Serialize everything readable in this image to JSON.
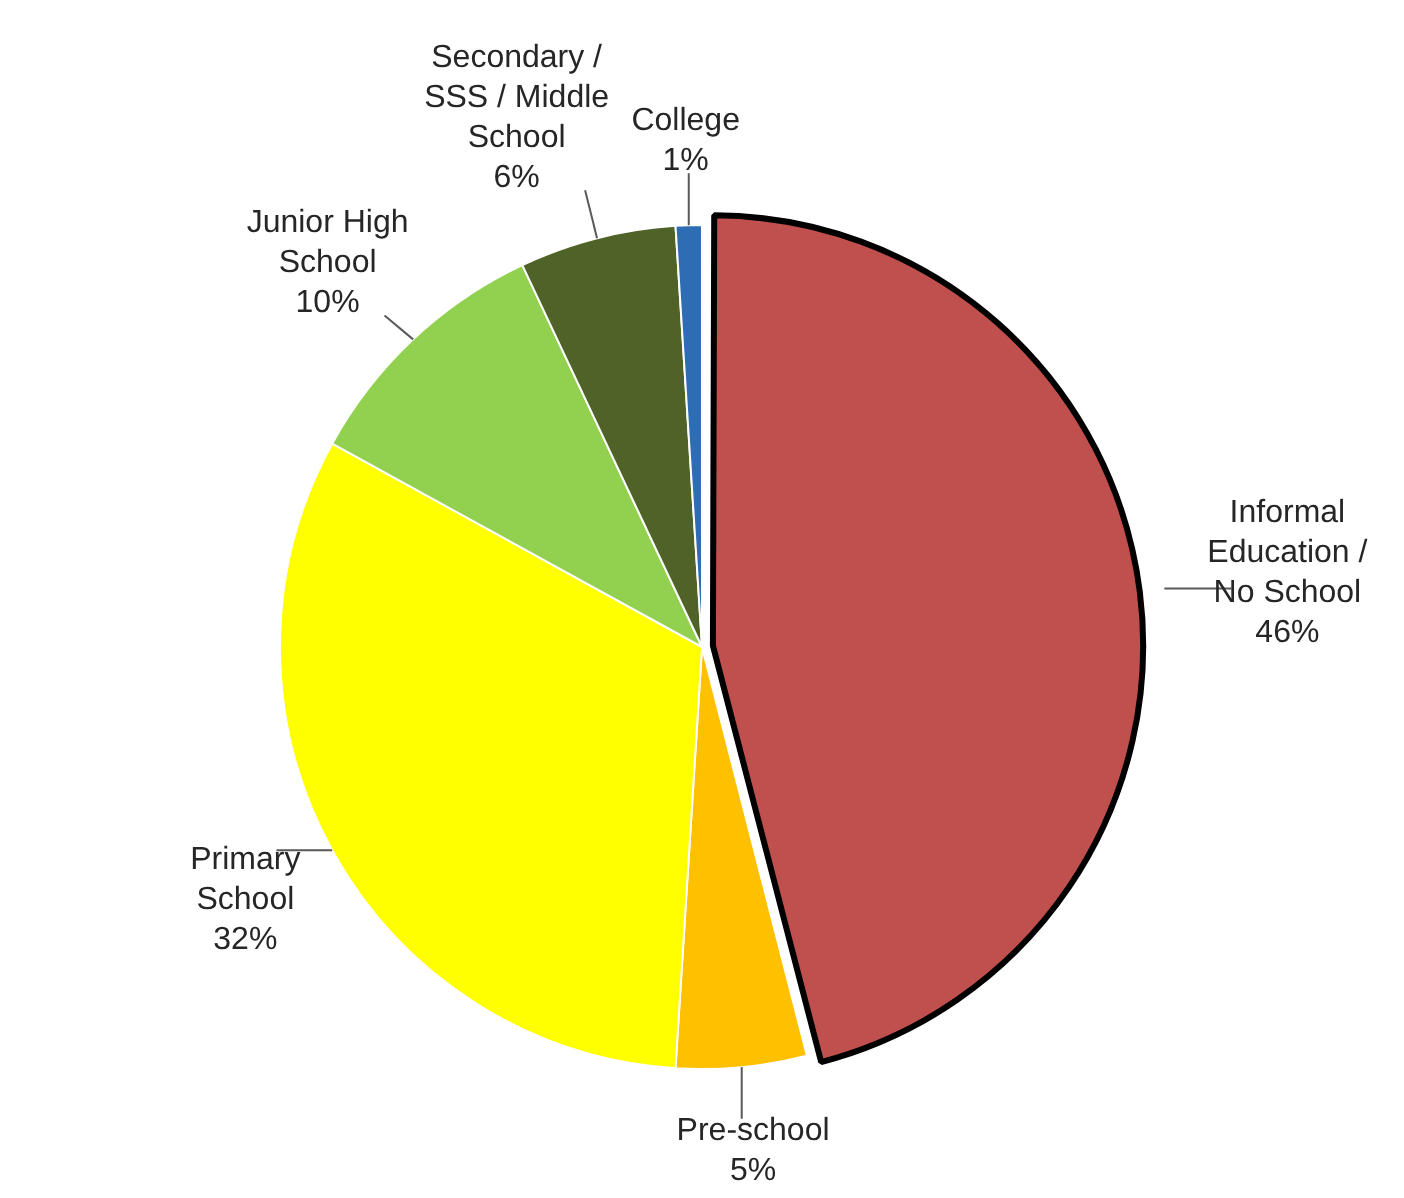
{
  "chart_data": {
    "type": "pie",
    "categories": [
      "Informal Education / No School",
      "Pre-school",
      "Primary School",
      "Junior High School",
      "Secondary / SSS / Middle School",
      "College"
    ],
    "values": [
      46,
      5,
      32,
      10,
      6,
      1
    ],
    "value_labels": [
      "46%",
      "5%",
      "32%",
      "10%",
      "6%",
      "1%"
    ],
    "colors": [
      "#c0504d",
      "#ffc000",
      "#ffff00",
      "#92d050",
      "#4f6228",
      "#2e6db4"
    ],
    "legend": false
  }
}
